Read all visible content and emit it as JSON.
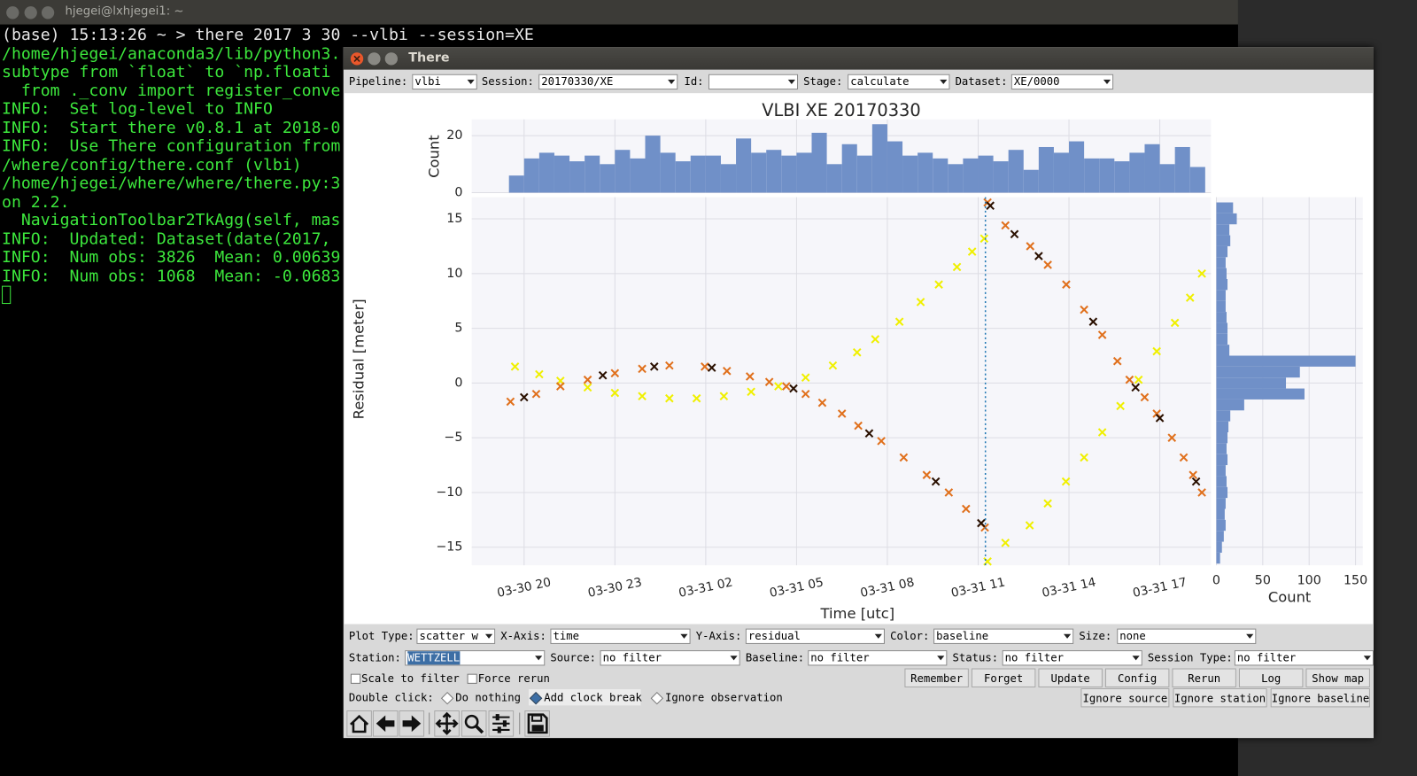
{
  "terminal": {
    "title": "hjegei@lxhjegei1: ~",
    "lines": [
      "(base) 15:13:26 ~ > there 2017 3 30 --vlbi --session=XE",
      "/home/hjegei/anaconda3/lib/python3.",
      "subtype from `float` to `np.floati",
      "  from ._conv import register_conve",
      "INFO:  Set log-level to INFO",
      "INFO:  Start there v0.8.1 at 2018-0",
      "INFO:  Use There configuration from",
      "/where/config/there.conf (vlbi)",
      "/home/hjegei/where/where/there.py:3",
      "on 2.2.",
      "  NavigationToolbar2TkAgg(self, mas",
      "INFO:  Updated: Dataset(date(2017, ",
      "INFO:  Num obs: 3826  Mean: 0.00639",
      "INFO:  Num obs: 1068  Mean: -0.0683"
    ]
  },
  "window": {
    "title": "There",
    "top_bar": [
      {
        "label": "Pipeline:",
        "value": "vlbi"
      },
      {
        "label": "Session:",
        "value": "20170330/XE"
      },
      {
        "label": "Id:"
      },
      {
        "label": "Stage:",
        "value": "calculate"
      },
      {
        "label": "Dataset:",
        "value": "XE/0000"
      }
    ],
    "plot": {
      "title": "VLBI XE 20170330",
      "main": {
        "type": "scatter",
        "xlabel": "Time [utc]",
        "ylabel": "Residual [meter]",
        "xlim": [
          18.27,
          42.69
        ],
        "ylim": [
          -16.65,
          16.98
        ],
        "xticks": [
          {
            "value": 20,
            "label": "03-30 20"
          },
          {
            "value": 23,
            "label": "03-30 23"
          },
          {
            "value": 26,
            "label": "03-31 02"
          },
          {
            "value": 29,
            "label": "03-31 05"
          },
          {
            "value": 32,
            "label": "03-31 08"
          },
          {
            "value": 35,
            "label": "03-31 11"
          },
          {
            "value": 38,
            "label": "03-31 14"
          },
          {
            "value": 41,
            "label": "03-31 17"
          }
        ],
        "yticks": [
          15,
          10,
          5,
          0,
          {
            "value": -5,
            "label": "−5"
          },
          {
            "value": -10,
            "label": "−10"
          },
          {
            "value": -15,
            "label": "−15"
          }
        ],
        "grid": true,
        "clock_break": 35.24,
        "series": [
          {
            "color": "#f0f000",
            "x": [
              19.7,
              20.5,
              21.2,
              22.1,
              23.0,
              23.9,
              24.8,
              25.7,
              26.6,
              27.5,
              28.4,
              29.3,
              30.2,
              31.0,
              31.6,
              32.4,
              33.1,
              33.7,
              34.3,
              34.8,
              35.2
            ],
            "values": [
              1.5,
              0.8,
              0.2,
              -0.4,
              -0.9,
              -1.2,
              -1.4,
              -1.4,
              -1.2,
              -0.8,
              -0.3,
              0.5,
              1.6,
              2.8,
              4.0,
              5.6,
              7.4,
              9.0,
              10.6,
              12.0,
              13.2
            ]
          },
          {
            "color": "#f0f000",
            "x": [
              35.31,
              35.9,
              36.7,
              37.3,
              37.9,
              38.5,
              39.1,
              39.7,
              40.3,
              40.9,
              41.5,
              42.0,
              42.39
            ],
            "values": [
              -16.3,
              -14.6,
              -13.0,
              -11.0,
              -9.0,
              -6.8,
              -4.5,
              -2.1,
              0.3,
              2.9,
              5.5,
              7.8,
              10.0
            ]
          },
          {
            "color": "#e0701c",
            "x": [
              19.55,
              20.4,
              21.2,
              22.1,
              23.0,
              23.9,
              24.8,
              25.97,
              26.7,
              27.46,
              28.1,
              28.66,
              29.3,
              29.85,
              30.5,
              31.04,
              31.8,
              32.54,
              33.3,
              34.03,
              34.6,
              35.22
            ],
            "values": [
              -1.7,
              -1.0,
              -0.3,
              0.3,
              0.9,
              1.3,
              1.6,
              1.5,
              1.1,
              0.6,
              0.1,
              -0.3,
              -1.0,
              -1.8,
              -2.8,
              -3.9,
              -5.3,
              -6.8,
              -8.4,
              -10.0,
              -11.5,
              -13.2
            ]
          },
          {
            "color": "#e0701c",
            "x": [
              35.31,
              35.9,
              36.72,
              37.3,
              37.91,
              38.5,
              39.1,
              39.6,
              40.0,
              40.5,
              40.9,
              41.4,
              41.79,
              42.1,
              42.39
            ],
            "values": [
              16.5,
              14.4,
              12.5,
              10.8,
              9.0,
              6.7,
              4.4,
              2.0,
              0.3,
              -1.3,
              -2.8,
              -5.0,
              -6.8,
              -8.4,
              -10.0
            ]
          },
          {
            "color": "#2a1000",
            "x": [
              20.0,
              22.6,
              24.3,
              26.2,
              28.9,
              31.4,
              33.6,
              35.1
            ],
            "values": [
              -1.3,
              0.7,
              1.5,
              1.4,
              -0.5,
              -4.6,
              -9.0,
              -12.8
            ]
          },
          {
            "color": "#2a1000",
            "x": [
              35.4,
              36.2,
              37.0,
              38.8,
              40.2,
              41.0,
              42.2
            ],
            "values": [
              16.2,
              13.6,
              11.6,
              5.6,
              -0.4,
              -3.2,
              -9.0
            ]
          }
        ]
      },
      "top_hist": {
        "type": "histogram",
        "ylabel": "Count",
        "color": "#7090c8",
        "ylim": [
          0,
          25.7
        ],
        "yticks": [
          0,
          20
        ],
        "bins": [
          19.5,
          20.0,
          20.5,
          21.0,
          21.5,
          22.0,
          22.5,
          23.0,
          23.5,
          24.0,
          24.5,
          25.0,
          25.5,
          26.0,
          26.5,
          27.0,
          27.5,
          28.0,
          28.5,
          29.0,
          29.5,
          30.0,
          30.5,
          31.0,
          31.5,
          32.0,
          32.5,
          33.0,
          33.5,
          34.0,
          34.5,
          35.0,
          35.5,
          36.0,
          36.5,
          37.0,
          37.5,
          38.0,
          38.5,
          39.0,
          39.5,
          40.0,
          40.5,
          41.0,
          41.5,
          42.0,
          42.5
        ],
        "counts": [
          6,
          12,
          14,
          13,
          11,
          13,
          10,
          15,
          12,
          20,
          14,
          11,
          13,
          13,
          10,
          19,
          14,
          15,
          13,
          14,
          21,
          10,
          17,
          13,
          24,
          18,
          13,
          14,
          12,
          10,
          12,
          13,
          11,
          15,
          8,
          16,
          14,
          18,
          12,
          12,
          11,
          14,
          17,
          10,
          16,
          9
        ]
      },
      "right_hist": {
        "type": "histogram",
        "xlabel": "Count",
        "color": "#7090c8",
        "xlim": [
          0,
          157.8
        ],
        "xticks": [
          0,
          50,
          100,
          150
        ],
        "bins": [
          -16.5,
          -15.5,
          -14.5,
          -13.5,
          -12.5,
          -11.5,
          -10.5,
          -9.5,
          -8.5,
          -7.5,
          -6.5,
          -5.5,
          -4.5,
          -3.5,
          -2.5,
          -1.5,
          -0.5,
          0.5,
          1.5,
          2.5,
          3.5,
          4.5,
          5.5,
          6.5,
          7.5,
          8.5,
          9.5,
          10.5,
          11.5,
          12.5,
          13.5,
          14.5,
          15.5,
          16.5
        ],
        "counts": [
          4,
          6,
          8,
          10,
          9,
          10,
          12,
          11,
          10,
          12,
          11,
          12,
          13,
          15,
          30,
          95,
          75,
          90,
          150,
          14,
          12,
          12,
          11,
          10,
          10,
          12,
          11,
          10,
          12,
          15,
          14,
          22,
          18
        ]
      }
    },
    "controls": {
      "row1": [
        {
          "label": "Plot Type:",
          "value": "scatter w"
        },
        {
          "label": "X-Axis:",
          "value": "time"
        },
        {
          "label": "Y-Axis:",
          "value": "residual"
        },
        {
          "label": "Color:",
          "value": "baseline"
        },
        {
          "label": "Size:",
          "value": "none"
        }
      ],
      "row2": [
        {
          "label": "Station:",
          "value": "WETTZELL",
          "highlighted": true
        },
        {
          "label": "Source:",
          "value": "no filter"
        },
        {
          "label": "Baseline:",
          "value": "no filter"
        },
        {
          "label": "Status:",
          "value": "no filter"
        },
        {
          "label": "Session Type:",
          "value": "no filter"
        }
      ],
      "checkboxes": [
        "Scale to filter",
        "Force rerun"
      ],
      "buttons": [
        "Remember",
        "Forget",
        "Update",
        "Config",
        "Rerun",
        "Log",
        "Show map"
      ],
      "double_click_label": "Double click:",
      "radios": [
        "Do nothing",
        "Add clock break",
        "Ignore observation"
      ],
      "selected_radio": 1,
      "ignore_buttons": [
        "Ignore source",
        "Ignore station",
        "Ignore baseline"
      ]
    }
  }
}
